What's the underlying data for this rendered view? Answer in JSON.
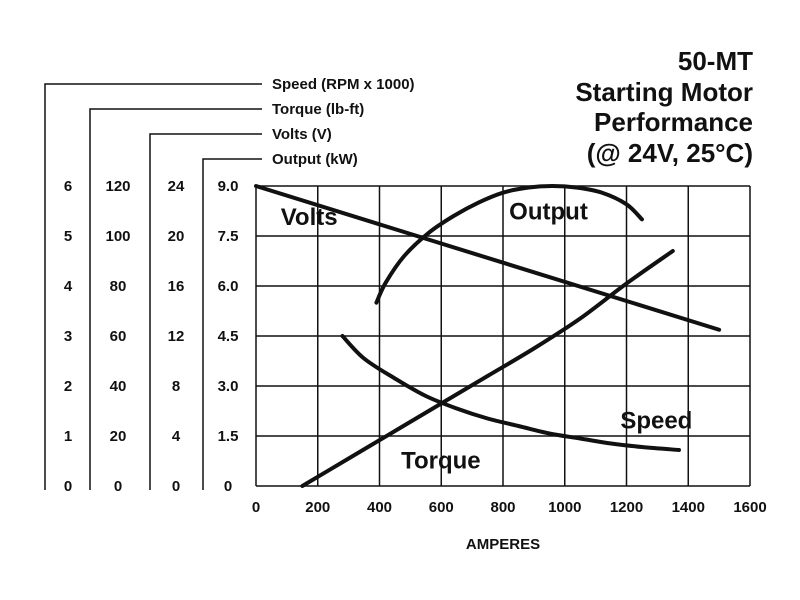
{
  "title_lines": [
    "50-MT",
    "Starting Motor",
    "Performance",
    "(@ 24V, 25°C)"
  ],
  "scale_labels": [
    "Speed (RPM x 1000)",
    "Torque (lb-ft)",
    "Volts (V)",
    "Output (kW)"
  ],
  "chart_data": {
    "type": "line",
    "title": "50-MT Starting Motor Performance (@ 24V, 25°C)",
    "xlabel": "AMPERES",
    "xlim": [
      0,
      1600
    ],
    "x_ticks": [
      0,
      200,
      400,
      600,
      800,
      1000,
      1200,
      1400,
      1600
    ],
    "x_tick_labels": [
      "0",
      "200",
      "400",
      "600",
      "800",
      "1000",
      "1200",
      "1400",
      "1600"
    ],
    "grid": true,
    "y_axes": [
      {
        "name": "Speed (RPM x 1000)",
        "lim": [
          0,
          6
        ],
        "tick_labels": [
          "0",
          "1",
          "2",
          "3",
          "4",
          "5",
          "6"
        ]
      },
      {
        "name": "Torque (lb-ft)",
        "lim": [
          0,
          120
        ],
        "tick_labels": [
          "0",
          "20",
          "40",
          "60",
          "80",
          "100",
          "120"
        ]
      },
      {
        "name": "Volts (V)",
        "lim": [
          0,
          24
        ],
        "tick_labels": [
          "0",
          "4",
          "8",
          "12",
          "16",
          "20",
          "24"
        ]
      },
      {
        "name": "Output (kW)",
        "lim": [
          0,
          9
        ],
        "tick_labels": [
          "0",
          "1.5",
          "3.0",
          "4.5",
          "6.0",
          "7.5",
          "9.0"
        ]
      }
    ],
    "series": [
      {
        "name": "Volts",
        "axis": 2,
        "label_at": [
          80,
          20.9
        ],
        "x": [
          0,
          1500
        ],
        "y": [
          24,
          12.5
        ]
      },
      {
        "name": "Output",
        "axis": 3,
        "label_at": [
          820,
          8.0
        ],
        "x": [
          390,
          420,
          480,
          560,
          640,
          720,
          800,
          880,
          960,
          1040,
          1120,
          1200,
          1250
        ],
        "y": [
          5.5,
          6.1,
          6.9,
          7.6,
          8.1,
          8.5,
          8.8,
          8.95,
          9.0,
          8.95,
          8.8,
          8.45,
          8.0
        ]
      },
      {
        "name": "Torque",
        "axis": 1,
        "label_at": [
          470,
          7
        ],
        "x": [
          150,
          300,
          450,
          600,
          750,
          900,
          1050,
          1200,
          1350
        ],
        "y": [
          0,
          11,
          22,
          33,
          44,
          55,
          67,
          81,
          94
        ]
      },
      {
        "name": "Speed",
        "axis": 0,
        "label_at": [
          1180,
          1.15
        ],
        "x": [
          280,
          350,
          450,
          550,
          650,
          750,
          850,
          950,
          1050,
          1150,
          1250,
          1370
        ],
        "y": [
          3.0,
          2.55,
          2.15,
          1.8,
          1.55,
          1.35,
          1.2,
          1.05,
          0.95,
          0.85,
          0.78,
          0.72
        ]
      }
    ]
  }
}
